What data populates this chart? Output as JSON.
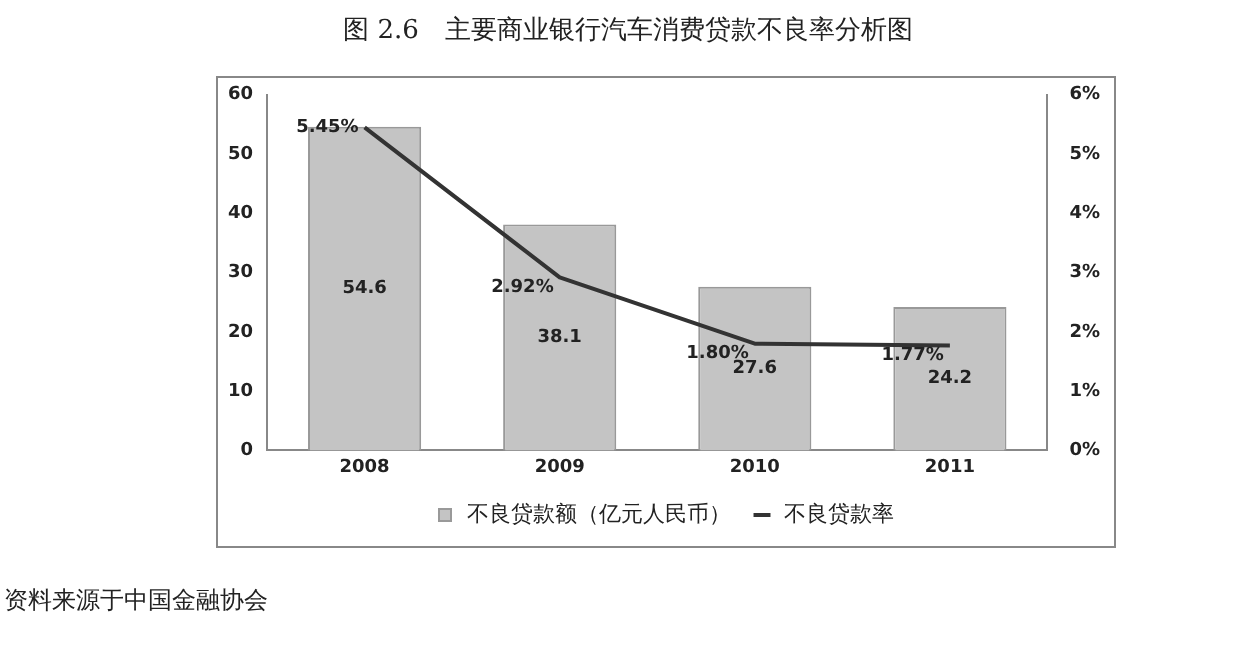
{
  "chart_data": {
    "type": "bar",
    "title": "图 2.6　主要商业银行汽车消费贷款不良率分析图",
    "categories": [
      "2008",
      "2009",
      "2010",
      "2011"
    ],
    "series": [
      {
        "name": "不良贷款额（亿元人民币）",
        "color": "#c4c4c4",
        "values": [
          54.6,
          38.1,
          27.6,
          24.2
        ],
        "value_labels": [
          "54.6",
          "38.1",
          "27.6",
          "24.2"
        ]
      },
      {
        "name": "不良贷款率",
        "type": "line",
        "axis": "y2",
        "color": "#333333",
        "values": [
          5.45,
          2.92,
          1.8,
          1.77
        ],
        "value_labels": [
          "5.45%",
          "2.92%",
          "1.80%",
          "1.77%"
        ]
      }
    ],
    "ylim": [
      0,
      60
    ],
    "yticks": [
      0,
      10,
      20,
      30,
      40,
      50,
      60
    ],
    "y2lim": [
      0,
      6
    ],
    "y2ticks": [
      {
        "value": 0,
        "label": "0%"
      },
      {
        "value": 1,
        "label": "1%"
      },
      {
        "value": 2,
        "label": "2%"
      },
      {
        "value": 3,
        "label": "3%"
      },
      {
        "value": 4,
        "label": "4%"
      },
      {
        "value": 5,
        "label": "5%"
      },
      {
        "value": 6,
        "label": "6%"
      }
    ],
    "legend": "bottom",
    "marker": "none",
    "line_style": "solid",
    "annotations": [
      "资料来源于中国金融协会"
    ]
  }
}
